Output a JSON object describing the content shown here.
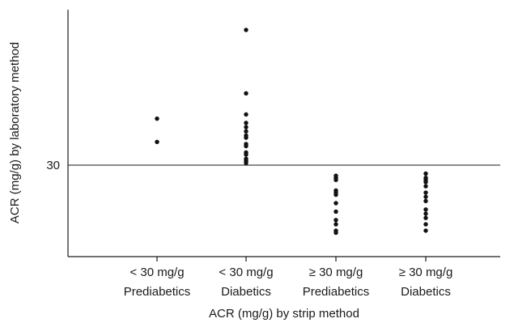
{
  "chart_data": {
    "type": "scatter",
    "xlabel": "ACR (mg/g) by strip method",
    "ylabel": "ACR (mg/g) by laboratory method",
    "y_reference_line": 30,
    "y_ticks": [
      30
    ],
    "grid": false,
    "legend": "none",
    "point_color": "#111111",
    "categories": [
      {
        "line1": "< 30 mg/g",
        "line2": "Prediabetics"
      },
      {
        "line1": "< 30 mg/g",
        "line2": "Diabetics"
      },
      {
        "line1": "≥ 30 mg/g",
        "line2": "Prediabetics"
      },
      {
        "line1": "≥ 30 mg/g",
        "line2": "Diabetics"
      }
    ],
    "series": [
      {
        "values": [
          41,
          35.5
        ]
      },
      {
        "values": [
          62,
          47,
          42,
          40,
          39,
          38,
          37,
          36.5,
          35,
          34.5,
          33,
          32.5,
          31.5,
          31,
          30.5
        ]
      },
      {
        "values": [
          27.5,
          27,
          26.5,
          24,
          23.5,
          23,
          21,
          19,
          17,
          16,
          14.5,
          14
        ]
      },
      {
        "values": [
          28,
          27,
          26.5,
          26,
          25,
          23.5,
          22.5,
          21.5,
          19.5,
          18.5,
          17.5,
          16,
          14.5
        ]
      }
    ]
  }
}
